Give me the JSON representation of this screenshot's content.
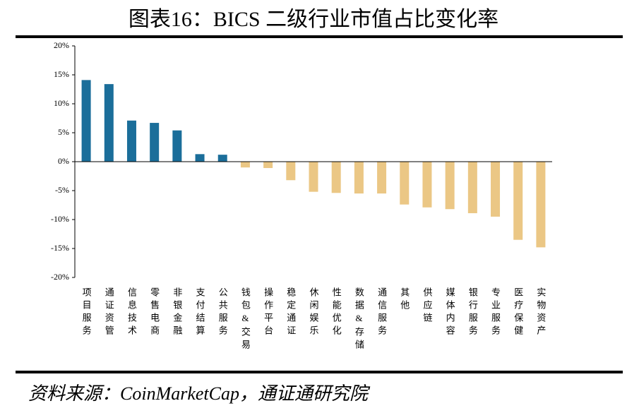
{
  "chart_data": {
    "type": "bar",
    "title": "图表16：BICS 二级行业市值占比变化率",
    "source": "资料来源：CoinMarketCap，通证通研究院",
    "categories": [
      "项目服务",
      "通证资管",
      "信息技术",
      "零售电商",
      "非银金融",
      "支付结算",
      "公共服务",
      "钱包&交易",
      "操作平台",
      "稳定通证",
      "休闲娱乐",
      "性能优化",
      "数据&存储",
      "通信服务",
      "其他",
      "供应链",
      "媒体内容",
      "银行服务",
      "专业服务",
      "医疗保健",
      "实物资产"
    ],
    "values": [
      14.1,
      13.4,
      7.1,
      6.7,
      5.4,
      1.3,
      1.2,
      -1.0,
      -1.1,
      -3.2,
      -5.2,
      -5.4,
      -5.5,
      -5.5,
      -7.4,
      -7.9,
      -8.2,
      -8.9,
      -9.5,
      -13.5,
      -14.8
    ],
    "color_positive": "#1b6e9a",
    "color_negative": "#ebc785",
    "ylim": [
      -20,
      20
    ],
    "yticks": [
      {
        "value": -20,
        "label": "-20%"
      },
      {
        "value": -15,
        "label": "-15%"
      },
      {
        "value": -10,
        "label": "-10%"
      },
      {
        "value": -5,
        "label": "-5%"
      },
      {
        "value": 0,
        "label": "0%"
      },
      {
        "value": 5,
        "label": "5%"
      },
      {
        "value": 10,
        "label": "10%"
      },
      {
        "value": 15,
        "label": "15%"
      },
      {
        "value": 20,
        "label": "20%"
      }
    ]
  }
}
